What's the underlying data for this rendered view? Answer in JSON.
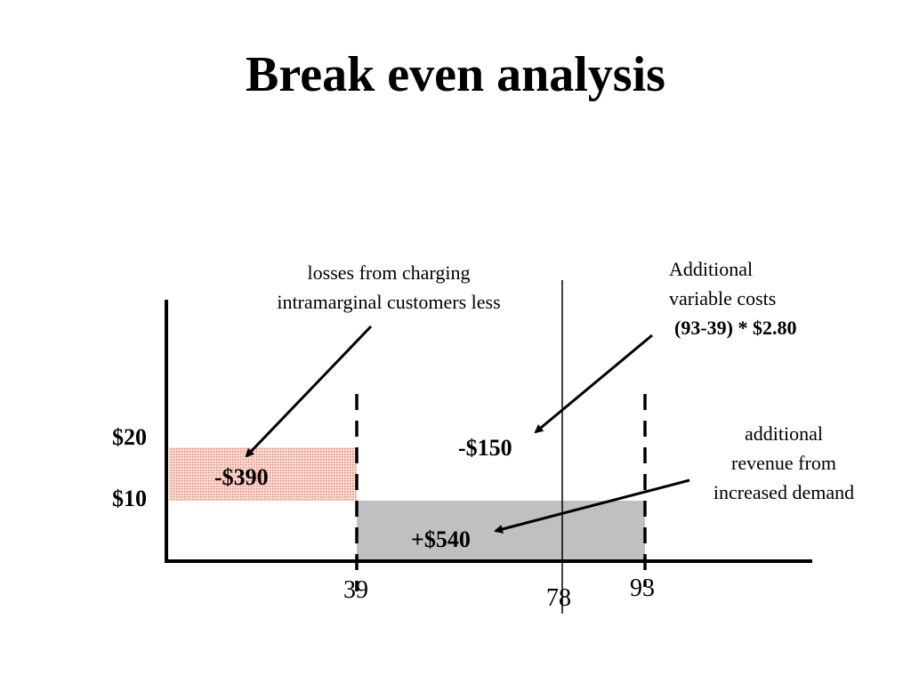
{
  "title": "Break even analysis",
  "axis": {
    "price_high": "$20",
    "price_low": "$10",
    "q1": "39",
    "q2": "78",
    "q3": "93"
  },
  "areas": {
    "loss": {
      "label": "-$390",
      "color": "#f0a090"
    },
    "gain": {
      "label": "+$540",
      "color": "#c0c0c0"
    },
    "cost": {
      "label": "-$150"
    }
  },
  "notes": {
    "losses_line1": "losses from charging",
    "losses_line2": "intramarginal customers less",
    "costs_line1": "Additional",
    "costs_line2": "variable costs",
    "costs_line3": "(93-39) * $2.80",
    "revenue_line1": "additional",
    "revenue_line2": "revenue from",
    "revenue_line3": "increased demand"
  }
}
